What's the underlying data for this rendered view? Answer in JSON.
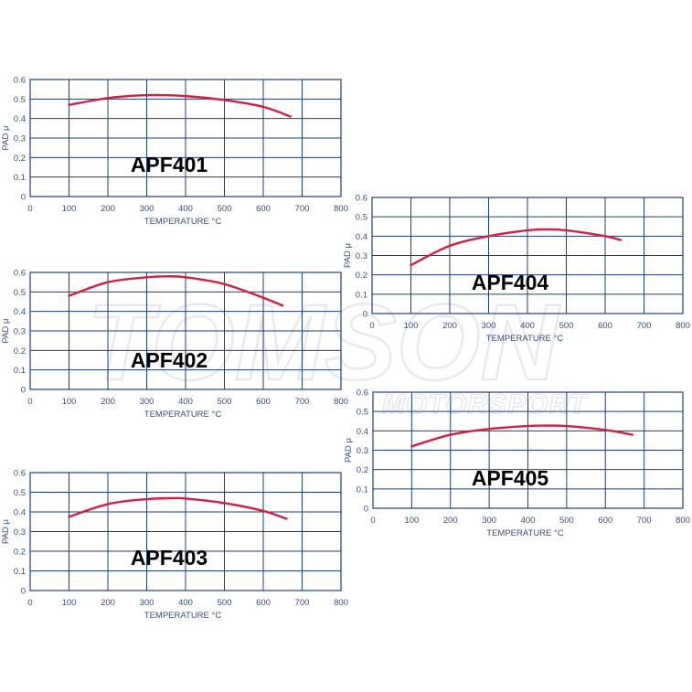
{
  "watermark": {
    "main": "TOMSON",
    "sub": "MOTORSPORT"
  },
  "colors": {
    "grid": "#1d3f78",
    "curve": "#d21f43",
    "label": "#3a4e79"
  },
  "chart_data": [
    {
      "type": "line",
      "title": "APF401",
      "xlabel": "TEMPERATURE °C",
      "ylabel": "PAD μ",
      "xlim": [
        0,
        800
      ],
      "ylim": [
        0,
        0.6
      ],
      "xticks": [
        "0",
        "100",
        "200",
        "300",
        "400",
        "500",
        "600",
        "700",
        "800"
      ],
      "yticks": [
        "0",
        "0.1",
        "0.2",
        "0.3",
        "0.4",
        "0.5",
        "0.6"
      ],
      "grid": true,
      "series": [
        {
          "x": [
            100,
            200,
            300,
            400,
            500,
            600,
            670
          ],
          "y": [
            0.47,
            0.505,
            0.52,
            0.515,
            0.495,
            0.46,
            0.41
          ]
        }
      ]
    },
    {
      "type": "line",
      "title": "APF402",
      "xlabel": "TEMPERATURE °C",
      "ylabel": "PAD μ",
      "xlim": [
        0,
        800
      ],
      "ylim": [
        0,
        0.6
      ],
      "xticks": [
        "0",
        "100",
        "200",
        "300",
        "400",
        "500",
        "600",
        "700",
        "800"
      ],
      "yticks": [
        "0",
        "0.1",
        "0.2",
        "0.3",
        "0.4",
        "0.5",
        "0.6"
      ],
      "grid": true,
      "series": [
        {
          "x": [
            100,
            200,
            300,
            350,
            400,
            500,
            600,
            650
          ],
          "y": [
            0.48,
            0.55,
            0.575,
            0.58,
            0.575,
            0.54,
            0.47,
            0.43
          ]
        }
      ]
    },
    {
      "type": "line",
      "title": "APF403",
      "xlabel": "TEMPERATURE °C",
      "ylabel": "PAD μ",
      "xlim": [
        0,
        800
      ],
      "ylim": [
        0,
        0.6
      ],
      "xticks": [
        "0",
        "100",
        "200",
        "300",
        "400",
        "500",
        "600",
        "700",
        "800"
      ],
      "yticks": [
        "0",
        "0.1",
        "0.2",
        "0.3",
        "0.4",
        "0.5",
        "0.6"
      ],
      "grid": true,
      "series": [
        {
          "x": [
            100,
            200,
            300,
            370,
            400,
            500,
            600,
            660
          ],
          "y": [
            0.375,
            0.44,
            0.465,
            0.47,
            0.468,
            0.445,
            0.405,
            0.365
          ]
        }
      ]
    },
    {
      "type": "line",
      "title": "APF404",
      "xlabel": "TEMPERATURE °C",
      "ylabel": "PAD μ",
      "xlim": [
        0,
        800
      ],
      "ylim": [
        0,
        0.6
      ],
      "xticks": [
        "0",
        "100",
        "200",
        "300",
        "400",
        "500",
        "600",
        "700",
        "800"
      ],
      "yticks": [
        "0",
        "0.1",
        "0.2",
        "0.3",
        "0.4",
        "0.5",
        "0.6"
      ],
      "grid": true,
      "series": [
        {
          "x": [
            100,
            200,
            300,
            400,
            450,
            500,
            600,
            640
          ],
          "y": [
            0.25,
            0.35,
            0.4,
            0.43,
            0.435,
            0.43,
            0.4,
            0.38
          ]
        }
      ]
    },
    {
      "type": "line",
      "title": "APF405",
      "xlabel": "TEMPERATURE °C",
      "ylabel": "PAD μ",
      "xlim": [
        0,
        800
      ],
      "ylim": [
        0,
        0.6
      ],
      "xticks": [
        "0",
        "100",
        "200",
        "300",
        "400",
        "500",
        "600",
        "700",
        "800"
      ],
      "yticks": [
        "0",
        "0.1",
        "0.2",
        "0.3",
        "0.4",
        "0.5",
        "0.6"
      ],
      "grid": true,
      "series": [
        {
          "x": [
            100,
            200,
            300,
            400,
            450,
            500,
            600,
            670
          ],
          "y": [
            0.32,
            0.38,
            0.41,
            0.425,
            0.427,
            0.425,
            0.405,
            0.38
          ]
        }
      ]
    }
  ]
}
